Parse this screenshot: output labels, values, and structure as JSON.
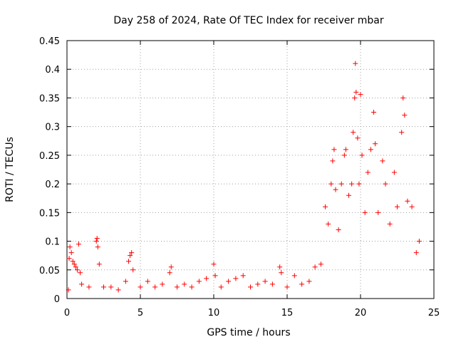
{
  "chart_data": {
    "type": "scatter",
    "title": "Day 258 of 2024, Rate Of TEC Index for receiver mbar",
    "xlabel": "GPS time / hours",
    "ylabel": "ROTI / TECUs",
    "xlim": [
      0,
      25
    ],
    "ylim": [
      0,
      0.45
    ],
    "x_ticks": [
      "0",
      "5",
      "10",
      "15",
      "20",
      "25"
    ],
    "y_ticks": [
      "0",
      "0.05",
      "0.1",
      "0.15",
      "0.2",
      "0.25",
      "0.3",
      "0.35",
      "0.4",
      "0.45"
    ],
    "grid": true,
    "marker": "+",
    "color": "#ff0000",
    "series": [
      {
        "points": [
          [
            0.1,
            0.015
          ],
          [
            0.15,
            0.07
          ],
          [
            0.2,
            0.09
          ],
          [
            0.3,
            0.08
          ],
          [
            0.4,
            0.065
          ],
          [
            0.5,
            0.06
          ],
          [
            0.6,
            0.055
          ],
          [
            0.7,
            0.05
          ],
          [
            0.8,
            0.095
          ],
          [
            0.9,
            0.045
          ],
          [
            1.0,
            0.025
          ],
          [
            1.5,
            0.02
          ],
          [
            2.0,
            0.1
          ],
          [
            2.05,
            0.105
          ],
          [
            2.1,
            0.09
          ],
          [
            2.2,
            0.06
          ],
          [
            2.5,
            0.02
          ],
          [
            3.0,
            0.02
          ],
          [
            3.5,
            0.015
          ],
          [
            4.0,
            0.03
          ],
          [
            4.2,
            0.065
          ],
          [
            4.3,
            0.075
          ],
          [
            4.4,
            0.08
          ],
          [
            4.5,
            0.05
          ],
          [
            5.0,
            0.02
          ],
          [
            5.5,
            0.03
          ],
          [
            6.0,
            0.02
          ],
          [
            6.5,
            0.025
          ],
          [
            7.0,
            0.045
          ],
          [
            7.1,
            0.055
          ],
          [
            7.5,
            0.02
          ],
          [
            8.0,
            0.025
          ],
          [
            8.5,
            0.02
          ],
          [
            9.0,
            0.03
          ],
          [
            9.5,
            0.035
          ],
          [
            10.0,
            0.06
          ],
          [
            10.1,
            0.04
          ],
          [
            10.5,
            0.02
          ],
          [
            11.0,
            0.03
          ],
          [
            11.5,
            0.035
          ],
          [
            12.0,
            0.04
          ],
          [
            12.5,
            0.02
          ],
          [
            13.0,
            0.025
          ],
          [
            13.5,
            0.03
          ],
          [
            14.0,
            0.025
          ],
          [
            14.5,
            0.055
          ],
          [
            14.6,
            0.045
          ],
          [
            15.0,
            0.02
          ],
          [
            15.5,
            0.04
          ],
          [
            16.0,
            0.025
          ],
          [
            16.5,
            0.03
          ],
          [
            16.9,
            0.055
          ],
          [
            17.3,
            0.06
          ],
          [
            17.6,
            0.16
          ],
          [
            17.8,
            0.13
          ],
          [
            18.0,
            0.2
          ],
          [
            18.1,
            0.24
          ],
          [
            18.2,
            0.26
          ],
          [
            18.3,
            0.19
          ],
          [
            18.5,
            0.12
          ],
          [
            18.7,
            0.2
          ],
          [
            18.9,
            0.25
          ],
          [
            19.0,
            0.26
          ],
          [
            19.2,
            0.18
          ],
          [
            19.4,
            0.2
          ],
          [
            19.5,
            0.29
          ],
          [
            19.6,
            0.35
          ],
          [
            19.65,
            0.41
          ],
          [
            19.7,
            0.36
          ],
          [
            19.8,
            0.28
          ],
          [
            19.9,
            0.2
          ],
          [
            20.0,
            0.356
          ],
          [
            20.1,
            0.25
          ],
          [
            20.3,
            0.15
          ],
          [
            20.5,
            0.22
          ],
          [
            20.7,
            0.26
          ],
          [
            20.9,
            0.325
          ],
          [
            21.0,
            0.27
          ],
          [
            21.2,
            0.15
          ],
          [
            21.5,
            0.24
          ],
          [
            21.7,
            0.2
          ],
          [
            22.0,
            0.13
          ],
          [
            22.3,
            0.22
          ],
          [
            22.5,
            0.16
          ],
          [
            22.8,
            0.29
          ],
          [
            22.9,
            0.35
          ],
          [
            23.0,
            0.32
          ],
          [
            23.2,
            0.17
          ],
          [
            23.5,
            0.16
          ],
          [
            23.8,
            0.08
          ],
          [
            24.0,
            0.1
          ]
        ]
      }
    ]
  }
}
